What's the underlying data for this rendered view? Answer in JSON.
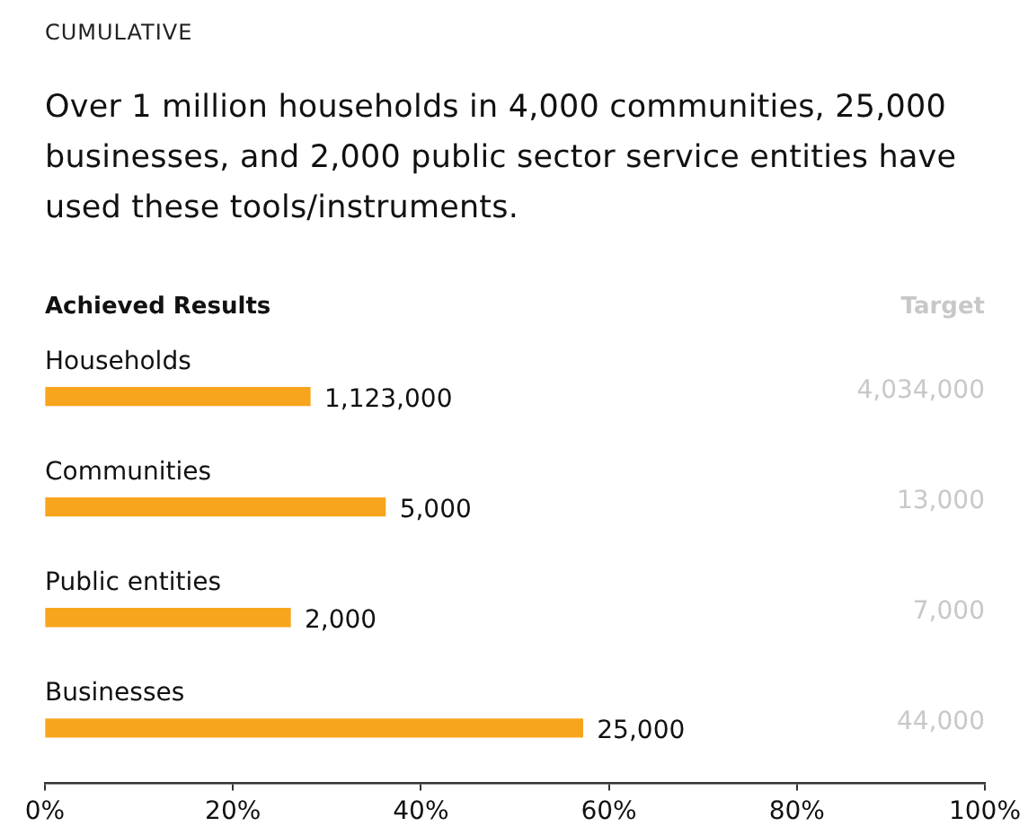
{
  "chart_data": {
    "type": "bar",
    "orientation": "horizontal",
    "title": "CUMULATIVE",
    "subtitle": "Over 1 million households in 4,000 communities, 25,000 businesses, and 2,000 public sector service entities have used these tools/instruments.",
    "categories": [
      "Households",
      "Communities",
      "Public entities",
      "Businesses"
    ],
    "values": [
      28.2,
      36.2,
      26.1,
      57.2
    ],
    "color": "#f7a51c",
    "xlim": [
      0,
      100
    ],
    "xticks": [
      {
        "value": 0,
        "label": "0%"
      },
      {
        "value": 20,
        "label": "20%"
      },
      {
        "value": 40,
        "label": "40%"
      },
      {
        "value": 60,
        "label": "60%"
      },
      {
        "value": 80,
        "label": "80%"
      },
      {
        "value": 100,
        "label": "100%"
      }
    ],
    "annotations": [
      "Achieved Results",
      "Target",
      "4,034,000",
      "13,000",
      "7,000",
      "44,000",
      {
        "text": "1,123,000",
        "x": 28.2,
        "y": "Households"
      },
      {
        "text": "5,000",
        "x": 36.2,
        "y": "Communities"
      },
      {
        "text": "2,000",
        "x": 26.1,
        "y": "Public entities"
      },
      {
        "text": "25,000",
        "x": 57.2,
        "y": "Businesses"
      }
    ]
  }
}
